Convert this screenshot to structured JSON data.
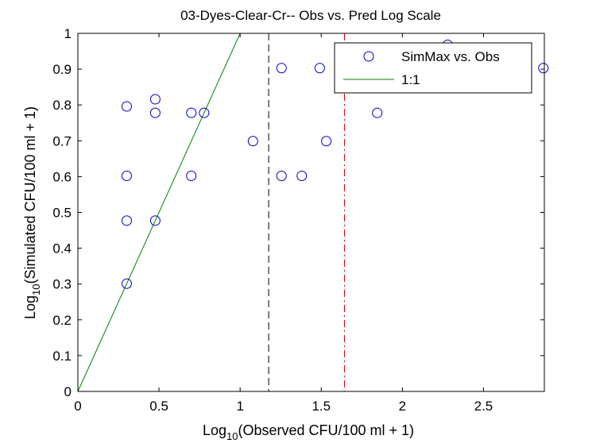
{
  "chart_data": {
    "type": "scatter",
    "title": "03-Dyes-Clear-Cr-- Obs vs. Pred Log Scale",
    "xlabel": {
      "prefix": "Log",
      "sub": "10",
      "rest": "(Observed CFU/100 ml + 1)"
    },
    "ylabel": {
      "prefix": "Log",
      "sub": "10",
      "rest": "(Simulated CFU/100 ml + 1)"
    },
    "xlim": [
      0,
      2.875
    ],
    "ylim": [
      0,
      1
    ],
    "xticks": [
      0,
      0.5,
      1,
      1.5,
      2,
      2.5
    ],
    "xtick_labels": [
      "0",
      "0.5",
      "1",
      "1.5",
      "2",
      "2.5"
    ],
    "yticks": [
      0,
      0.1,
      0.2,
      0.3,
      0.4,
      0.5,
      0.6,
      0.7,
      0.8,
      0.9,
      1
    ],
    "ytick_labels": [
      "0",
      "0.1",
      "0.2",
      "0.3",
      "0.4",
      "0.5",
      "0.6",
      "0.7",
      "0.8",
      "0.9",
      "1"
    ],
    "series": [
      {
        "name": "SimMax vs. Obs",
        "kind": "scatter",
        "marker": "circle-open",
        "color": "#0000cc",
        "x": [
          0.301,
          0.301,
          0.301,
          0.301,
          0.477,
          0.477,
          0.477,
          0.699,
          0.699,
          0.778,
          1.079,
          1.255,
          1.255,
          1.38,
          1.491,
          1.531,
          1.845,
          2.279,
          2.869
        ],
        "y": [
          0.301,
          0.477,
          0.602,
          0.796,
          0.477,
          0.778,
          0.816,
          0.602,
          0.778,
          0.778,
          0.699,
          0.903,
          0.602,
          0.602,
          0.903,
          0.699,
          0.778,
          0.968,
          0.903
        ]
      },
      {
        "name": "1:1",
        "kind": "line",
        "color": "#007f00",
        "x": [
          0,
          1
        ],
        "y": [
          0,
          1
        ]
      }
    ],
    "reference_lines": [
      {
        "kind": "vertical",
        "x": 1.176,
        "color": "#000000",
        "style": "dashed"
      },
      {
        "kind": "vertical",
        "x": 1.643,
        "color": "#cc0000",
        "style": "dash-dot"
      }
    ],
    "legend": {
      "position": "top-right"
    },
    "grid": false
  }
}
